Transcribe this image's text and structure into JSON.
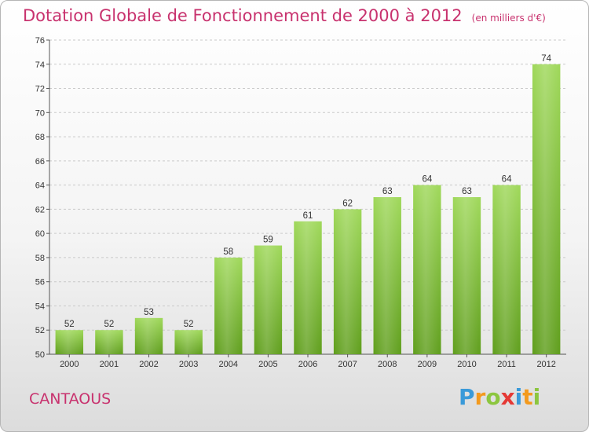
{
  "chart_data": {
    "type": "bar",
    "title": "Dotation Globale de Fonctionnement de 2000 à 2012",
    "subtitle": "(en milliers d'€)",
    "xlabel": "",
    "ylabel": "",
    "categories": [
      "2000",
      "2001",
      "2002",
      "2003",
      "2004",
      "2005",
      "2006",
      "2007",
      "2008",
      "2009",
      "2010",
      "2011",
      "2012"
    ],
    "values": [
      52,
      52,
      53,
      52,
      58,
      59,
      61,
      62,
      63,
      64,
      63,
      64,
      74
    ],
    "ylim": [
      50,
      76
    ],
    "yticks": [
      50,
      52,
      54,
      56,
      58,
      60,
      62,
      64,
      66,
      68,
      70,
      72,
      74,
      76
    ],
    "grid": true,
    "bar_color": "#7fc23a"
  },
  "commune": "CANTAOUS",
  "logo": {
    "letters": [
      "P",
      "r",
      "o",
      "x",
      "i",
      "t",
      "i"
    ],
    "colors": [
      "#3a9ad9",
      "#f39a1e",
      "#8cc63f",
      "#e53935",
      "#3a9ad9",
      "#f39a1e",
      "#8cc63f"
    ]
  }
}
